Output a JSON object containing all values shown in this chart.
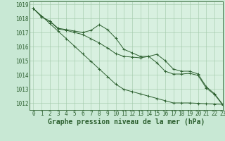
{
  "title": "Graphe pression niveau de la mer (hPa)",
  "background_color": "#c8e8d4",
  "plot_bg_color": "#d8f0e0",
  "grid_color": "#a0c8a8",
  "line_color": "#2d6030",
  "xlim": [
    -0.5,
    23
  ],
  "ylim": [
    1011.5,
    1019.2
  ],
  "xticks": [
    0,
    1,
    2,
    3,
    4,
    5,
    6,
    7,
    8,
    9,
    10,
    11,
    12,
    13,
    14,
    15,
    16,
    17,
    18,
    19,
    20,
    21,
    22,
    23
  ],
  "yticks": [
    1012,
    1013,
    1014,
    1015,
    1016,
    1017,
    1018,
    1019
  ],
  "series1": {
    "x": [
      0,
      1,
      2,
      3,
      4,
      5,
      6,
      7,
      8,
      9,
      10,
      11,
      12,
      13,
      14,
      15,
      16,
      17,
      18,
      19,
      20,
      21,
      22,
      23
    ],
    "y": [
      1018.7,
      1018.1,
      1017.8,
      1017.3,
      1017.2,
      1017.1,
      1017.0,
      1017.15,
      1017.55,
      1017.2,
      1016.6,
      1015.8,
      1015.55,
      1015.3,
      1015.3,
      1015.45,
      1015.0,
      1014.4,
      1014.25,
      1014.25,
      1014.05,
      1013.15,
      1012.65,
      1011.9
    ]
  },
  "series2": {
    "x": [
      0,
      1,
      2,
      3,
      4,
      5,
      6,
      7,
      8,
      9,
      10,
      11,
      12,
      13,
      14,
      15,
      16,
      17,
      18,
      19,
      20,
      21,
      22,
      23
    ],
    "y": [
      1018.7,
      1018.1,
      1017.8,
      1017.25,
      1017.15,
      1017.0,
      1016.85,
      1016.55,
      1016.25,
      1015.9,
      1015.5,
      1015.3,
      1015.25,
      1015.2,
      1015.3,
      1014.85,
      1014.25,
      1014.05,
      1014.05,
      1014.1,
      1013.95,
      1013.05,
      1012.6,
      1011.85
    ]
  },
  "series3": {
    "x": [
      0,
      1,
      2,
      3,
      4,
      5,
      6,
      7,
      8,
      9,
      10,
      11,
      12,
      13,
      14,
      15,
      16,
      17,
      18,
      19,
      20,
      21,
      22,
      23
    ],
    "y": [
      1018.7,
      1018.17,
      1017.63,
      1017.09,
      1016.56,
      1016.02,
      1015.48,
      1014.95,
      1014.41,
      1013.87,
      1013.33,
      1012.96,
      1012.8,
      1012.64,
      1012.48,
      1012.32,
      1012.16,
      1012.0,
      1012.0,
      1012.0,
      1011.97,
      1011.94,
      1011.92,
      1011.9
    ]
  },
  "tick_fontsize": 5.5,
  "xlabel_fontsize": 7.0
}
